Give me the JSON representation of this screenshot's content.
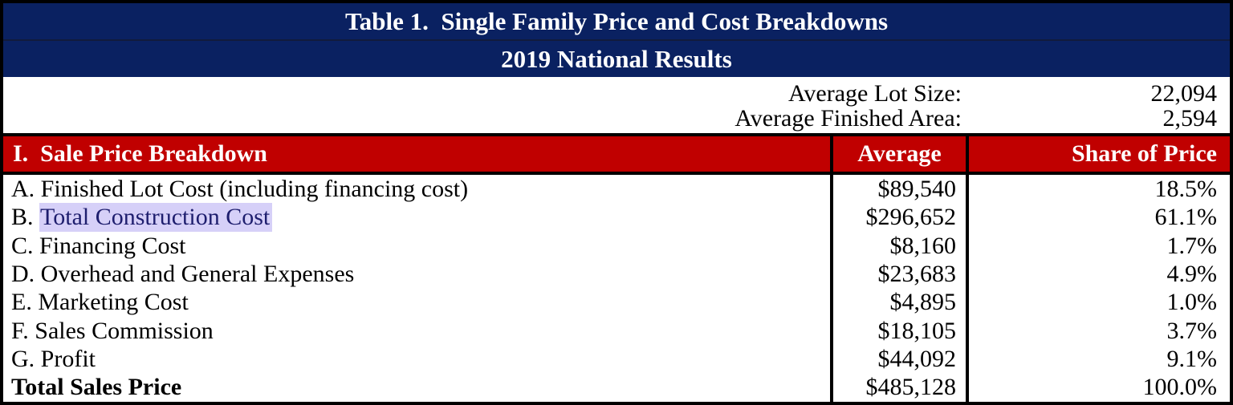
{
  "titleBar": {
    "line1": "Table 1.  Single Family Price and Cost Breakdowns",
    "line2": "2019 National Results"
  },
  "summary": {
    "rows": [
      {
        "label": "Average Lot Size:",
        "value": "22,094"
      },
      {
        "label": "Average Finished Area:",
        "value": "2,594"
      }
    ]
  },
  "sectionHeader": {
    "title": "I.  Sale Price Breakdown",
    "colAverage": "Average",
    "colShare": "Share of Price"
  },
  "rows": [
    {
      "label": "A. Finished Lot Cost (including financing cost)",
      "average": "$89,540",
      "share": "18.5%"
    },
    {
      "prefix": "B. ",
      "highlighted": "Total Construction Cost",
      "average": "$296,652",
      "share": "61.1%"
    },
    {
      "label": "C. Financing Cost",
      "average": "$8,160",
      "share": "1.7%"
    },
    {
      "label": "D. Overhead and General Expenses",
      "average": "$23,683",
      "share": "4.9%"
    },
    {
      "label": "E. Marketing Cost",
      "average": "$4,895",
      "share": "1.0%"
    },
    {
      "label": "F. Sales Commission",
      "average": "$18,105",
      "share": "3.7%"
    },
    {
      "label": "G. Profit",
      "average": "$44,092",
      "share": "9.1%"
    },
    {
      "label": "Total Sales Price",
      "average": "$485,128",
      "share": "100.0%"
    }
  ],
  "colors": {
    "navy_header": "#0a2161",
    "red_header": "#c00000",
    "header_text": "#ffffff",
    "body_text": "#000000",
    "border": "#000000",
    "highlight_background": "#d6d0f8",
    "highlight_text": "#1e1e6e"
  },
  "chart_data": {
    "type": "table",
    "title": "Table 1.  Single Family Price and Cost Breakdowns",
    "subtitle": "2019 National Results",
    "meta": {
      "average_lot_size": "22,094",
      "average_finished_area": "2,594"
    },
    "columns": [
      "I.  Sale Price Breakdown",
      "Average",
      "Share of Price"
    ],
    "rows": [
      [
        "A. Finished Lot Cost (including financing cost)",
        "$89,540",
        "18.5%"
      ],
      [
        "B. Total Construction Cost",
        "$296,652",
        "61.1%"
      ],
      [
        "C. Financing Cost",
        "$8,160",
        "1.7%"
      ],
      [
        "D. Overhead and General Expenses",
        "$23,683",
        "4.9%"
      ],
      [
        "E. Marketing Cost",
        "$4,895",
        "1.0%"
      ],
      [
        "F. Sales Commission",
        "$18,105",
        "3.7%"
      ],
      [
        "G. Profit",
        "$44,092",
        "9.1%"
      ],
      [
        "Total Sales Price",
        "$485,128",
        "100.0%"
      ]
    ]
  }
}
